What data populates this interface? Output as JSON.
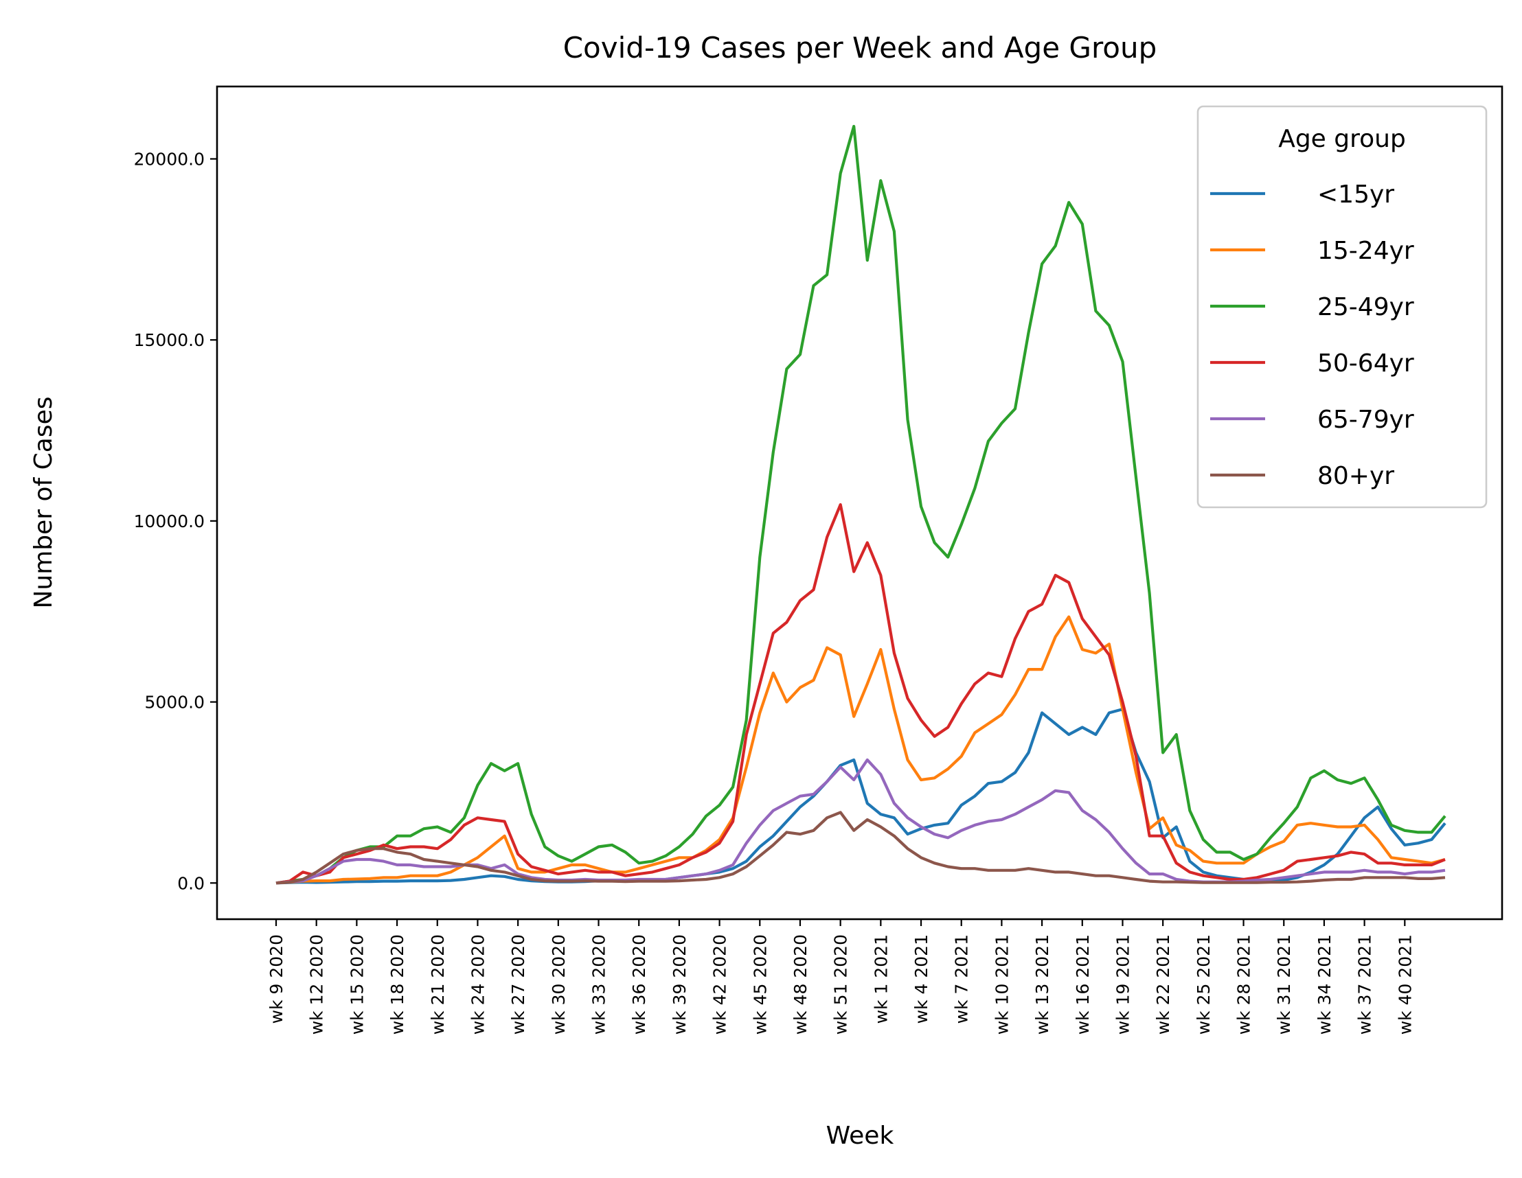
{
  "chart_data": {
    "type": "line",
    "title": "Covid-19 Cases per Week and Age Group",
    "xlabel": "Week",
    "ylabel": "Number of Cases",
    "ylim": [
      -1000,
      22000
    ],
    "yticks": [
      "0.0",
      "5000.0",
      "10000.0",
      "15000.0",
      "20000.0"
    ],
    "x": [
      "wk 9 2020",
      "wk 10 2020",
      "wk 11 2020",
      "wk 12 2020",
      "wk 13 2020",
      "wk 14 2020",
      "wk 15 2020",
      "wk 16 2020",
      "wk 17 2020",
      "wk 18 2020",
      "wk 19 2020",
      "wk 20 2020",
      "wk 21 2020",
      "wk 22 2020",
      "wk 23 2020",
      "wk 24 2020",
      "wk 25 2020",
      "wk 26 2020",
      "wk 27 2020",
      "wk 28 2020",
      "wk 29 2020",
      "wk 30 2020",
      "wk 31 2020",
      "wk 32 2020",
      "wk 33 2020",
      "wk 34 2020",
      "wk 35 2020",
      "wk 36 2020",
      "wk 37 2020",
      "wk 38 2020",
      "wk 39 2020",
      "wk 40 2020",
      "wk 41 2020",
      "wk 42 2020",
      "wk 43 2020",
      "wk 44 2020",
      "wk 45 2020",
      "wk 46 2020",
      "wk 47 2020",
      "wk 48 2020",
      "wk 49 2020",
      "wk 50 2020",
      "wk 51 2020",
      "wk 52 2020",
      "wk 53 2020",
      "wk 1 2021",
      "wk 2 2021",
      "wk 3 2021",
      "wk 4 2021",
      "wk 5 2021",
      "wk 6 2021",
      "wk 7 2021",
      "wk 8 2021",
      "wk 9 2021",
      "wk 10 2021",
      "wk 11 2021",
      "wk 12 2021",
      "wk 13 2021",
      "wk 14 2021",
      "wk 15 2021",
      "wk 16 2021",
      "wk 17 2021",
      "wk 18 2021",
      "wk 19 2021",
      "wk 20 2021",
      "wk 21 2021",
      "wk 22 2021",
      "wk 23 2021",
      "wk 24 2021",
      "wk 25 2021",
      "wk 26 2021",
      "wk 27 2021",
      "wk 28 2021",
      "wk 29 2021",
      "wk 30 2021",
      "wk 31 2021",
      "wk 32 2021",
      "wk 33 2021",
      "wk 34 2021",
      "wk 35 2021",
      "wk 36 2021",
      "wk 37 2021",
      "wk 38 2021",
      "wk 39 2021",
      "wk 40 2021",
      "wk 41 2021",
      "wk 42 2021",
      "wk 43 2021"
    ],
    "xtick_labels": [
      "wk 9 2020",
      "wk 12 2020",
      "wk 15 2020",
      "wk 18 2020",
      "wk 21 2020",
      "wk 24 2020",
      "wk 27 2020",
      "wk 30 2020",
      "wk 33 2020",
      "wk 36 2020",
      "wk 39 2020",
      "wk 42 2020",
      "wk 45 2020",
      "wk 48 2020",
      "wk 51 2020",
      "wk 1 2021",
      "wk 4 2021",
      "wk 7 2021",
      "wk 10 2021",
      "wk 13 2021",
      "wk 16 2021",
      "wk 19 2021",
      "wk 22 2021",
      "wk 25 2021",
      "wk 28 2021",
      "wk 31 2021",
      "wk 34 2021",
      "wk 37 2021",
      "wk 40 2021"
    ],
    "legend": {
      "title": "Age group",
      "position": "top-right"
    },
    "grid": false,
    "series": [
      {
        "name": "<15yr",
        "color": "#1f77b4",
        "values": [
          0,
          10,
          20,
          15,
          20,
          30,
          40,
          40,
          50,
          50,
          60,
          60,
          60,
          70,
          100,
          150,
          200,
          180,
          100,
          60,
          40,
          30,
          30,
          40,
          60,
          60,
          60,
          70,
          80,
          100,
          150,
          200,
          250,
          300,
          400,
          600,
          1000,
          1300,
          1700,
          2100,
          2400,
          2800,
          3250,
          3400,
          2200,
          1900,
          1800,
          1350,
          1500,
          1600,
          1650,
          2150,
          2400,
          2750,
          2800,
          3050,
          3600,
          4700,
          4400,
          4100,
          4300,
          4100,
          4700,
          4800,
          3600,
          2800,
          1250,
          1550,
          600,
          300,
          200,
          150,
          100,
          60,
          60,
          80,
          150,
          300,
          500,
          800,
          1300,
          1800,
          2100,
          1500,
          1050,
          1100,
          1200,
          1650
        ]
      },
      {
        "name": "15-24yr",
        "color": "#ff7f0e",
        "values": [
          0,
          20,
          50,
          60,
          60,
          100,
          110,
          120,
          150,
          150,
          200,
          200,
          200,
          300,
          500,
          700,
          1000,
          1300,
          400,
          300,
          300,
          400,
          500,
          500,
          400,
          300,
          300,
          400,
          500,
          600,
          700,
          700,
          900,
          1200,
          1800,
          3200,
          4700,
          5800,
          5000,
          5400,
          5600,
          6500,
          6300,
          4600,
          5500,
          6450,
          4800,
          3400,
          2850,
          2900,
          3150,
          3500,
          4150,
          4400,
          4650,
          5200,
          5900,
          5900,
          6800,
          7350,
          6450,
          6350,
          6600,
          4800,
          3050,
          1500,
          1800,
          1050,
          900,
          600,
          550,
          550,
          550,
          800,
          1000,
          1150,
          1600,
          1650,
          1600,
          1550,
          1550,
          1600,
          1200,
          700,
          650,
          600,
          550,
          650
        ]
      },
      {
        "name": "25-49yr",
        "color": "#2ca02c",
        "values": [
          0,
          50,
          100,
          200,
          400,
          700,
          900,
          1000,
          1000,
          1300,
          1300,
          1500,
          1550,
          1400,
          1800,
          2700,
          3300,
          3100,
          3300,
          1900,
          1000,
          750,
          600,
          800,
          1000,
          1050,
          850,
          550,
          600,
          750,
          1000,
          1350,
          1850,
          2150,
          2650,
          4500,
          9000,
          11900,
          14200,
          14600,
          16500,
          16800,
          19600,
          20900,
          17200,
          19400,
          18000,
          12800,
          10400,
          9400,
          9000,
          9900,
          10900,
          12200,
          12700,
          13100,
          15200,
          17100,
          17600,
          18800,
          18200,
          15800,
          15400,
          14400,
          11200,
          8000,
          3600,
          4100,
          2000,
          1200,
          850,
          850,
          650,
          800,
          1250,
          1650,
          2100,
          2900,
          3100,
          2850,
          2750,
          2900,
          2300,
          1600,
          1450,
          1400,
          1400,
          1850
        ]
      },
      {
        "name": "50-64yr",
        "color": "#d62728",
        "values": [
          0,
          50,
          300,
          200,
          300,
          700,
          800,
          900,
          1050,
          950,
          1000,
          1000,
          950,
          1200,
          1600,
          1800,
          1750,
          1700,
          800,
          450,
          350,
          250,
          300,
          350,
          300,
          300,
          200,
          250,
          300,
          400,
          500,
          700,
          850,
          1100,
          1700,
          4100,
          5500,
          6900,
          7200,
          7800,
          8100,
          9550,
          10450,
          8600,
          9400,
          8500,
          6350,
          5100,
          4500,
          4050,
          4300,
          4950,
          5500,
          5800,
          5700,
          6750,
          7500,
          7700,
          8500,
          8300,
          7300,
          6800,
          6300,
          5000,
          3500,
          1300,
          1300,
          550,
          300,
          200,
          150,
          100,
          100,
          150,
          250,
          350,
          600,
          650,
          700,
          750,
          850,
          800,
          550,
          550,
          500,
          500,
          500,
          650
        ]
      },
      {
        "name": "65-79yr",
        "color": "#9467bd",
        "values": [
          0,
          30,
          60,
          200,
          400,
          600,
          650,
          650,
          600,
          500,
          500,
          450,
          450,
          450,
          500,
          500,
          400,
          500,
          250,
          150,
          100,
          80,
          80,
          100,
          80,
          80,
          80,
          100,
          100,
          100,
          150,
          200,
          250,
          350,
          500,
          1100,
          1600,
          2000,
          2200,
          2400,
          2450,
          2800,
          3200,
          2850,
          3400,
          3000,
          2200,
          1800,
          1550,
          1350,
          1250,
          1450,
          1600,
          1700,
          1750,
          1900,
          2100,
          2300,
          2550,
          2500,
          2000,
          1750,
          1400,
          950,
          550,
          250,
          250,
          100,
          50,
          30,
          30,
          30,
          50,
          80,
          100,
          150,
          200,
          250,
          300,
          300,
          300,
          350,
          300,
          300,
          250,
          300,
          300,
          350
        ]
      },
      {
        "name": "80+yr",
        "color": "#8c564b",
        "values": [
          0,
          20,
          100,
          300,
          550,
          800,
          900,
          950,
          950,
          850,
          800,
          650,
          600,
          550,
          500,
          450,
          350,
          300,
          200,
          100,
          60,
          50,
          50,
          60,
          50,
          50,
          40,
          50,
          50,
          50,
          60,
          80,
          100,
          150,
          250,
          450,
          750,
          1050,
          1400,
          1350,
          1450,
          1800,
          1950,
          1450,
          1750,
          1550,
          1300,
          950,
          700,
          550,
          450,
          400,
          400,
          350,
          350,
          350,
          400,
          350,
          300,
          300,
          250,
          200,
          200,
          150,
          100,
          50,
          30,
          30,
          20,
          10,
          10,
          10,
          10,
          10,
          20,
          20,
          30,
          50,
          80,
          100,
          100,
          150,
          150,
          150,
          150,
          120,
          120,
          150
        ]
      }
    ]
  }
}
